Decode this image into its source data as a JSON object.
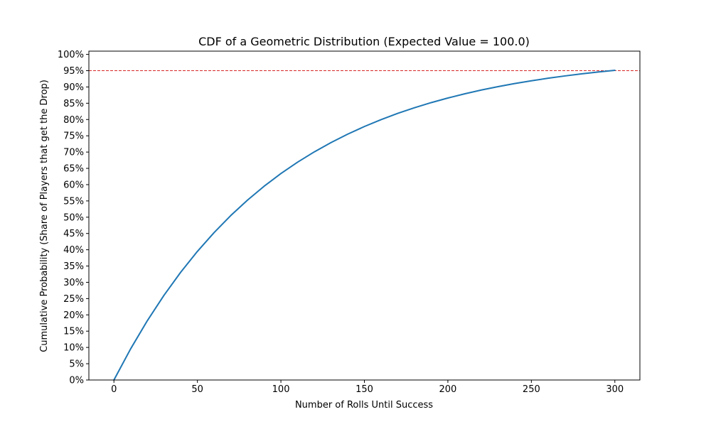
{
  "chart_data": {
    "type": "line",
    "title": "CDF of a Geometric Distribution (Expected Value = 100.0)",
    "xlabel": "Number of Rolls Until Success",
    "ylabel": "Cumulative Probability (Share of Players that get the Drop)",
    "xlim": [
      -15,
      315
    ],
    "ylim": [
      0,
      1.01
    ],
    "x_ticks": [
      0,
      50,
      100,
      150,
      200,
      250,
      300
    ],
    "x_tick_labels": [
      "0",
      "50",
      "100",
      "150",
      "200",
      "250",
      "300"
    ],
    "y_ticks": [
      0,
      0.05,
      0.1,
      0.15,
      0.2,
      0.25,
      0.3,
      0.35,
      0.4,
      0.45,
      0.5,
      0.55,
      0.6,
      0.65,
      0.7,
      0.75,
      0.8,
      0.85,
      0.9,
      0.95,
      1.0
    ],
    "y_tick_labels": [
      "0%",
      "5%",
      "10%",
      "15%",
      "20%",
      "25%",
      "30%",
      "35%",
      "40%",
      "45%",
      "50%",
      "55%",
      "60%",
      "65%",
      "70%",
      "75%",
      "80%",
      "85%",
      "90%",
      "95%",
      "100%"
    ],
    "grid": false,
    "series": [
      {
        "color": "#1f77b4",
        "x": [
          0,
          10,
          20,
          30,
          40,
          50,
          60,
          70,
          80,
          90,
          100,
          110,
          120,
          130,
          140,
          150,
          160,
          170,
          180,
          190,
          200,
          210,
          220,
          230,
          240,
          250,
          260,
          270,
          280,
          290,
          300
        ],
        "y": [
          0.0,
          0.0956,
          0.1821,
          0.2603,
          0.331,
          0.395,
          0.4528,
          0.5052,
          0.5525,
          0.5953,
          0.634,
          0.669,
          0.7006,
          0.7292,
          0.7551,
          0.7785,
          0.7997,
          0.8189,
          0.8362,
          0.8519,
          0.866,
          0.8789,
          0.8905,
          0.901,
          0.9104,
          0.919,
          0.9268,
          0.9338,
          0.9401,
          0.9459,
          0.951
        ]
      }
    ],
    "reference_lines": [
      {
        "orientation": "horizontal",
        "y": 0.95,
        "color": "#d62728",
        "style": "dashed"
      }
    ]
  }
}
